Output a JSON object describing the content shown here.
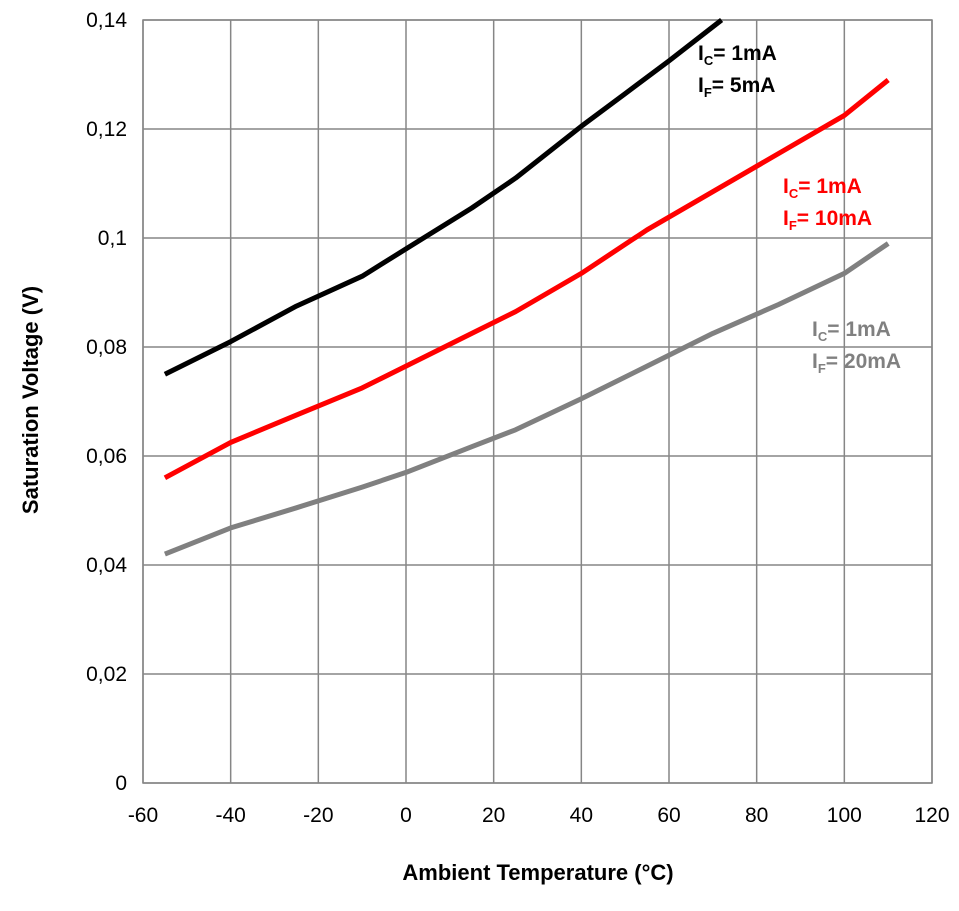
{
  "chart_data": {
    "type": "line",
    "xlabel": "Ambient Temperature (°C)",
    "ylabel": "Saturation Voltage (V)",
    "xlim": [
      -60,
      120
    ],
    "ylim": [
      0,
      0.14
    ],
    "x_ticks": [
      "-60",
      "-40",
      "-20",
      "0",
      "20",
      "40",
      "60",
      "80",
      "100",
      "120"
    ],
    "y_ticks": [
      "0",
      "0,02",
      "0,04",
      "0,06",
      "0,08",
      "0,1",
      "0,12",
      "0,14"
    ],
    "grid": true,
    "series": [
      {
        "color": "#000000",
        "label_lines": [
          {
            "main": "I",
            "sub": "C",
            "rest": "= 1mA"
          },
          {
            "main": "I",
            "sub": "F",
            "rest": "= 5mA"
          }
        ],
        "points": [
          [
            -55,
            0.075
          ],
          [
            -40,
            0.081
          ],
          [
            -25,
            0.0875
          ],
          [
            -10,
            0.093
          ],
          [
            0,
            0.098
          ],
          [
            15,
            0.1055
          ],
          [
            25,
            0.111
          ],
          [
            40,
            0.1205
          ],
          [
            50,
            0.1265
          ],
          [
            60,
            0.1325
          ],
          [
            72,
            0.14
          ]
        ]
      },
      {
        "color": "#ff0000",
        "label_lines": [
          {
            "main": "I",
            "sub": "C",
            "rest": "= 1mA"
          },
          {
            "main": "I",
            "sub": "F",
            "rest": "= 10mA"
          }
        ],
        "points": [
          [
            -55,
            0.056
          ],
          [
            -40,
            0.0625
          ],
          [
            -25,
            0.0675
          ],
          [
            -10,
            0.0725
          ],
          [
            0,
            0.0765
          ],
          [
            15,
            0.0825
          ],
          [
            25,
            0.0865
          ],
          [
            40,
            0.0935
          ],
          [
            55,
            0.1015
          ],
          [
            70,
            0.1085
          ],
          [
            85,
            0.1155
          ],
          [
            100,
            0.1225
          ],
          [
            110,
            0.129
          ]
        ]
      },
      {
        "color": "#808080",
        "label_lines": [
          {
            "main": "I",
            "sub": "C",
            "rest": "= 1mA"
          },
          {
            "main": "I",
            "sub": "F",
            "rest": "= 20mA"
          }
        ],
        "points": [
          [
            -55,
            0.042
          ],
          [
            -40,
            0.0468
          ],
          [
            -25,
            0.0505
          ],
          [
            -10,
            0.0543
          ],
          [
            0,
            0.057
          ],
          [
            15,
            0.0617
          ],
          [
            25,
            0.0648
          ],
          [
            40,
            0.0705
          ],
          [
            55,
            0.0765
          ],
          [
            70,
            0.0825
          ],
          [
            85,
            0.0878
          ],
          [
            100,
            0.0935
          ],
          [
            110,
            0.099
          ]
        ]
      }
    ]
  }
}
